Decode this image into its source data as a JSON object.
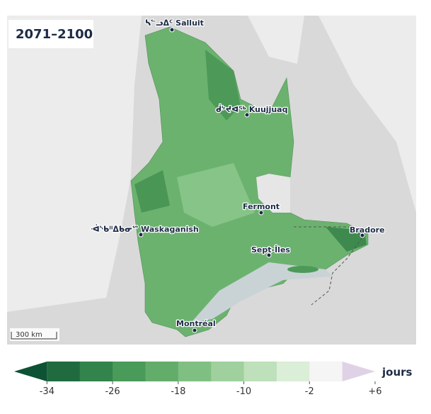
{
  "period": "2071–2100",
  "cities": [
    {
      "label": "ᓴᓪᓗᐃᑦ Salluit"
    },
    {
      "label": "ᑰᔾᔪᐊᖅ Kuujjuaq"
    },
    {
      "label": "Fermont"
    },
    {
      "label": "Bradore"
    },
    {
      "label": "ᐙᔅᑲᐦᐃᑲᓂᔥ Waskaganish"
    },
    {
      "label": "Sept-Îles"
    },
    {
      "label": "Montréal"
    }
  ],
  "scale_bar": "300 km",
  "legend": {
    "unit": "jours",
    "lim": [
      -38,
      6
    ],
    "ticks": [
      -34,
      -26,
      -18,
      -10,
      -2,
      {
        "value": 6,
        "label": "+6"
      }
    ],
    "colors": [
      "#0d5235",
      "#1f6b3f",
      "#33834c",
      "#4a9a5a",
      "#63ad6b",
      "#80bf82",
      "#9fd09d",
      "#bee0ba",
      "#dbeed7",
      "#f5f5f5",
      "#e0d2e6"
    ]
  }
}
